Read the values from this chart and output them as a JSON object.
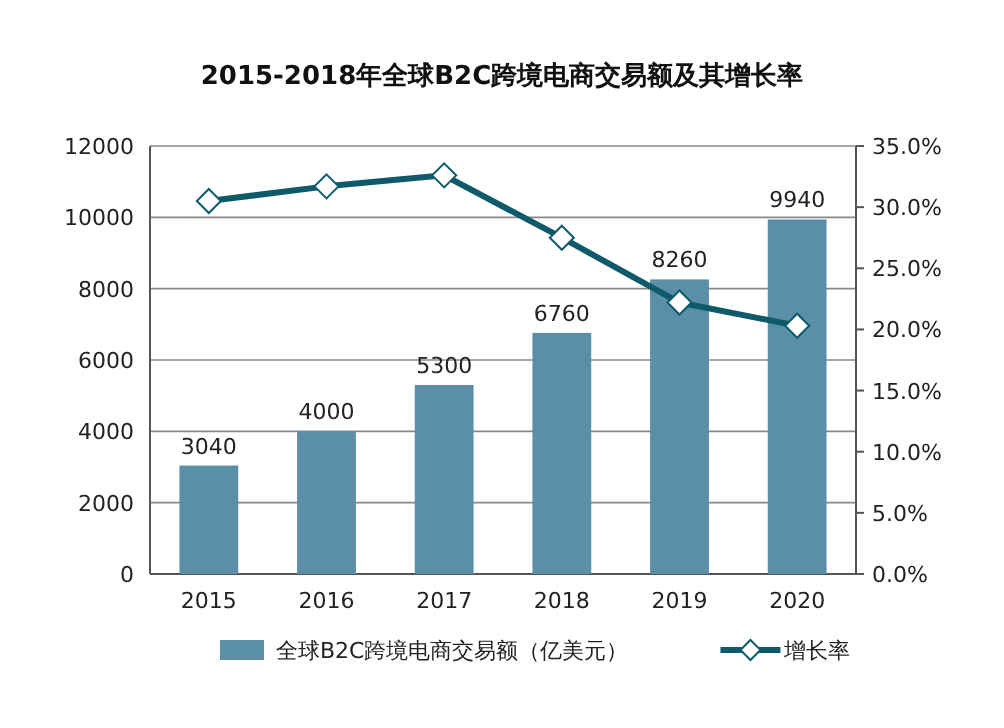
{
  "chart_data": {
    "type": "bar",
    "title": "2015-2018年全球B2C跨境电商交易额及其增长率",
    "categories": [
      "2015",
      "2016",
      "2017",
      "2018",
      "2019",
      "2020"
    ],
    "series": [
      {
        "name": "全球B2C跨境电商交易额（亿美元）",
        "color": "#5b8fa8",
        "values": [
          3040,
          4000,
          5300,
          6760,
          8260,
          9940
        ],
        "value_labels": [
          "3040",
          "4000",
          "5300",
          "6760",
          "8260",
          "9940"
        ]
      },
      {
        "name": "增长率",
        "type": "line",
        "axis": "y2",
        "color": "#0e5a6b",
        "marker": "diamond",
        "values": [
          30.5,
          31.7,
          32.6,
          27.5,
          22.2,
          20.3
        ]
      }
    ],
    "ylim": [
      0,
      12000
    ],
    "yticks": [
      0,
      2000,
      4000,
      6000,
      8000,
      10000,
      12000
    ],
    "y2lim": [
      0,
      35
    ],
    "y2ticks": [
      {
        "value": 0,
        "label": "0.0%"
      },
      {
        "value": 5,
        "label": "5.0%"
      },
      {
        "value": 10,
        "label": "10.0%"
      },
      {
        "value": 15,
        "label": "15.0%"
      },
      {
        "value": 20,
        "label": "20.0%"
      },
      {
        "value": 25,
        "label": "25.0%"
      },
      {
        "value": 30,
        "label": "30.0%"
      },
      {
        "value": 35,
        "label": "35.0%"
      }
    ],
    "grid": "y",
    "legend": "bottom"
  }
}
